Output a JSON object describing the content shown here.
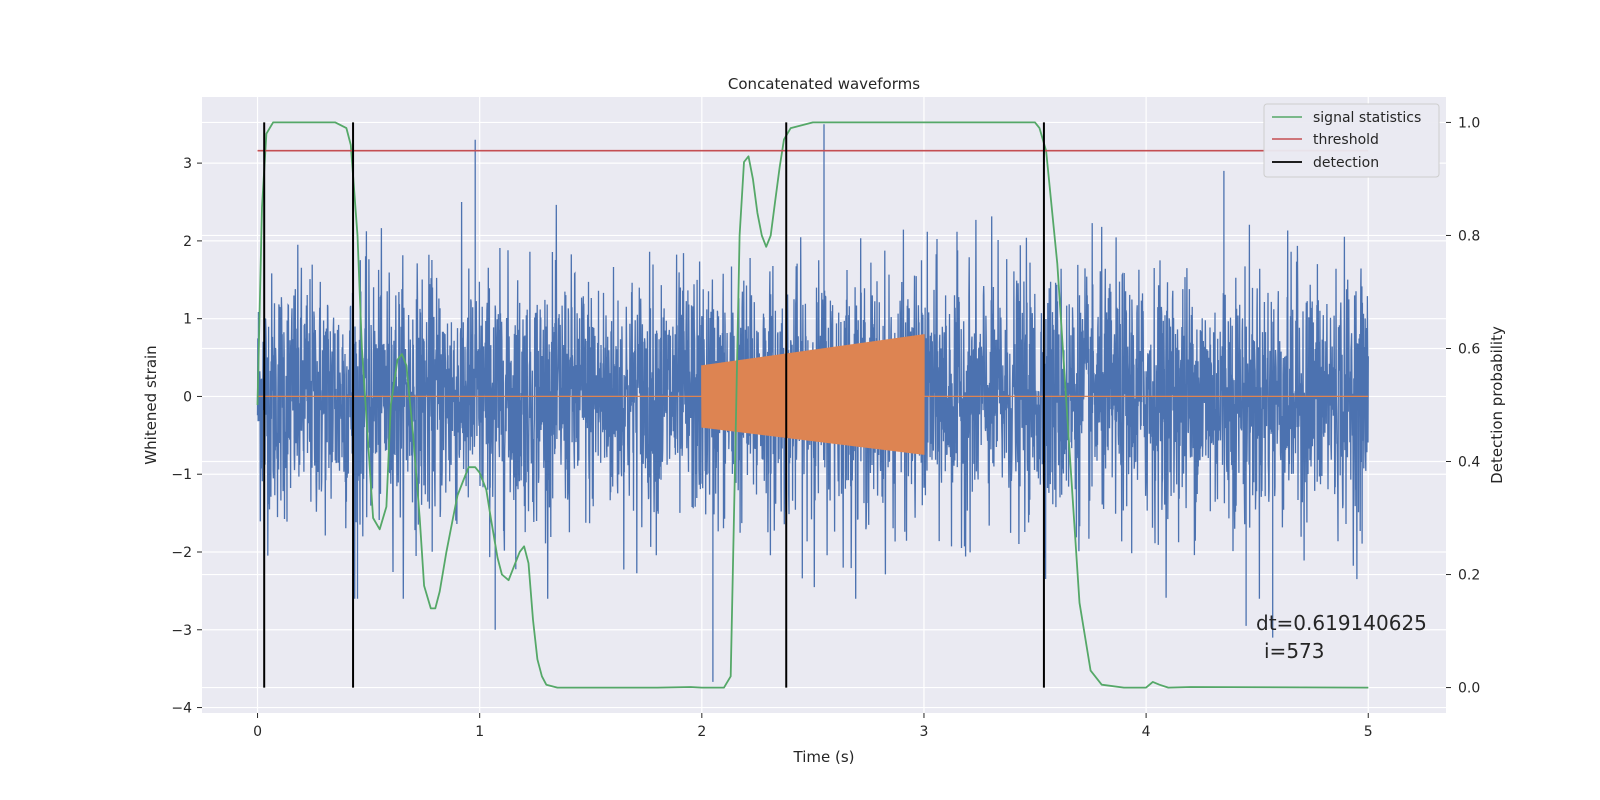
{
  "chart_data": {
    "type": "line",
    "title": "Concatenated waveforms",
    "xlabel": "Time (s)",
    "ylabel": "Whitened strain",
    "y2label": "Detection probability",
    "xlim": [
      -0.25,
      5.35
    ],
    "ylim": [
      -4.07,
      3.85
    ],
    "y2lim": [
      -0.045,
      1.045
    ],
    "xticks": [
      0,
      1,
      2,
      3,
      4,
      5
    ],
    "yticks": [
      -4,
      -3,
      -2,
      -1,
      0,
      1,
      2,
      3
    ],
    "y2ticks": [
      0.0,
      0.2,
      0.4,
      0.6,
      0.8,
      1.0
    ],
    "grid": true,
    "legend_position": "top-right",
    "colors": {
      "strain": "#4c72b0",
      "template": "#dd8452",
      "signal_statistics": "#55a868",
      "threshold": "#c44e52",
      "detection": "#000000",
      "background": "#eaeaf2",
      "grid": "#ffffff"
    },
    "series": [
      {
        "name": "signal statistics",
        "axis": "right",
        "x": [
          0.0,
          0.02,
          0.04,
          0.07,
          0.1,
          0.15,
          0.2,
          0.25,
          0.3,
          0.35,
          0.4,
          0.42,
          0.45,
          0.47,
          0.5,
          0.52,
          0.55,
          0.58,
          0.6,
          0.63,
          0.65,
          0.67,
          0.7,
          0.73,
          0.75,
          0.78,
          0.8,
          0.82,
          0.85,
          0.88,
          0.9,
          0.93,
          0.95,
          0.98,
          1.0,
          1.03,
          1.05,
          1.08,
          1.1,
          1.13,
          1.15,
          1.18,
          1.2,
          1.22,
          1.24,
          1.26,
          1.28,
          1.3,
          1.35,
          1.4,
          1.6,
          1.8,
          1.95,
          2.0,
          2.05,
          2.1,
          2.13,
          2.15,
          2.17,
          2.19,
          2.21,
          2.23,
          2.25,
          2.27,
          2.29,
          2.31,
          2.33,
          2.35,
          2.37,
          2.4,
          2.45,
          2.5,
          2.55,
          2.6,
          2.8,
          3.0,
          3.3,
          3.5,
          3.52,
          3.55,
          3.6,
          3.65,
          3.7,
          3.75,
          3.8,
          3.9,
          4.0,
          4.03,
          4.06,
          4.1,
          4.2,
          5.0
        ],
        "y": [
          0.5,
          0.85,
          0.98,
          1.0,
          1.0,
          1.0,
          1.0,
          1.0,
          1.0,
          1.0,
          0.99,
          0.96,
          0.8,
          0.6,
          0.42,
          0.3,
          0.28,
          0.32,
          0.5,
          0.58,
          0.59,
          0.57,
          0.45,
          0.3,
          0.18,
          0.14,
          0.14,
          0.17,
          0.24,
          0.3,
          0.34,
          0.37,
          0.39,
          0.39,
          0.38,
          0.35,
          0.3,
          0.23,
          0.2,
          0.19,
          0.21,
          0.24,
          0.25,
          0.22,
          0.12,
          0.05,
          0.02,
          0.005,
          0.0,
          0.0,
          0.0,
          0.0,
          0.001,
          0.0,
          0.0,
          0.0,
          0.02,
          0.4,
          0.8,
          0.93,
          0.94,
          0.9,
          0.84,
          0.8,
          0.78,
          0.8,
          0.86,
          0.92,
          0.97,
          0.99,
          0.995,
          1.0,
          1.0,
          1.0,
          1.0,
          1.0,
          1.0,
          1.0,
          0.99,
          0.95,
          0.75,
          0.45,
          0.15,
          0.03,
          0.005,
          0.0,
          0.0,
          0.01,
          0.005,
          0.0,
          0.001,
          0.0
        ]
      },
      {
        "name": "threshold",
        "axis": "right",
        "x": [
          0.0,
          5.0
        ],
        "y": [
          0.95,
          0.95
        ]
      },
      {
        "name": "detection",
        "axis": "right",
        "x": [
          0.03,
          0.43,
          2.38,
          3.54
        ],
        "y_range": [
          0.0,
          1.0
        ]
      }
    ],
    "unlabeled_series": [
      {
        "label": "",
        "color": "strain",
        "description_kind": "noise",
        "x_range": [
          0.0,
          5.0
        ],
        "typical_range": [
          -2.0,
          2.2
        ],
        "spikes_high": [
          [
            0.98,
            3.3
          ],
          [
            2.55,
            3.5
          ],
          [
            4.35,
            2.9
          ]
        ],
        "spikes_low": [
          [
            0.45,
            -2.6
          ],
          [
            1.07,
            -3.0
          ],
          [
            2.05,
            -3.67
          ],
          [
            4.45,
            -2.95
          ],
          [
            4.57,
            -3.1
          ]
        ]
      },
      {
        "label": "",
        "color": "template",
        "kind": "chirp",
        "x_range": [
          2.0,
          3.0
        ],
        "start_amplitude": [
          -0.4,
          0.4
        ],
        "end_amplitude": [
          -0.75,
          0.8
        ]
      }
    ],
    "annotations": [
      "dt=0.619140625",
      "i=573"
    ]
  },
  "legend": {
    "items": [
      "signal statistics",
      "threshold",
      "detection"
    ]
  }
}
